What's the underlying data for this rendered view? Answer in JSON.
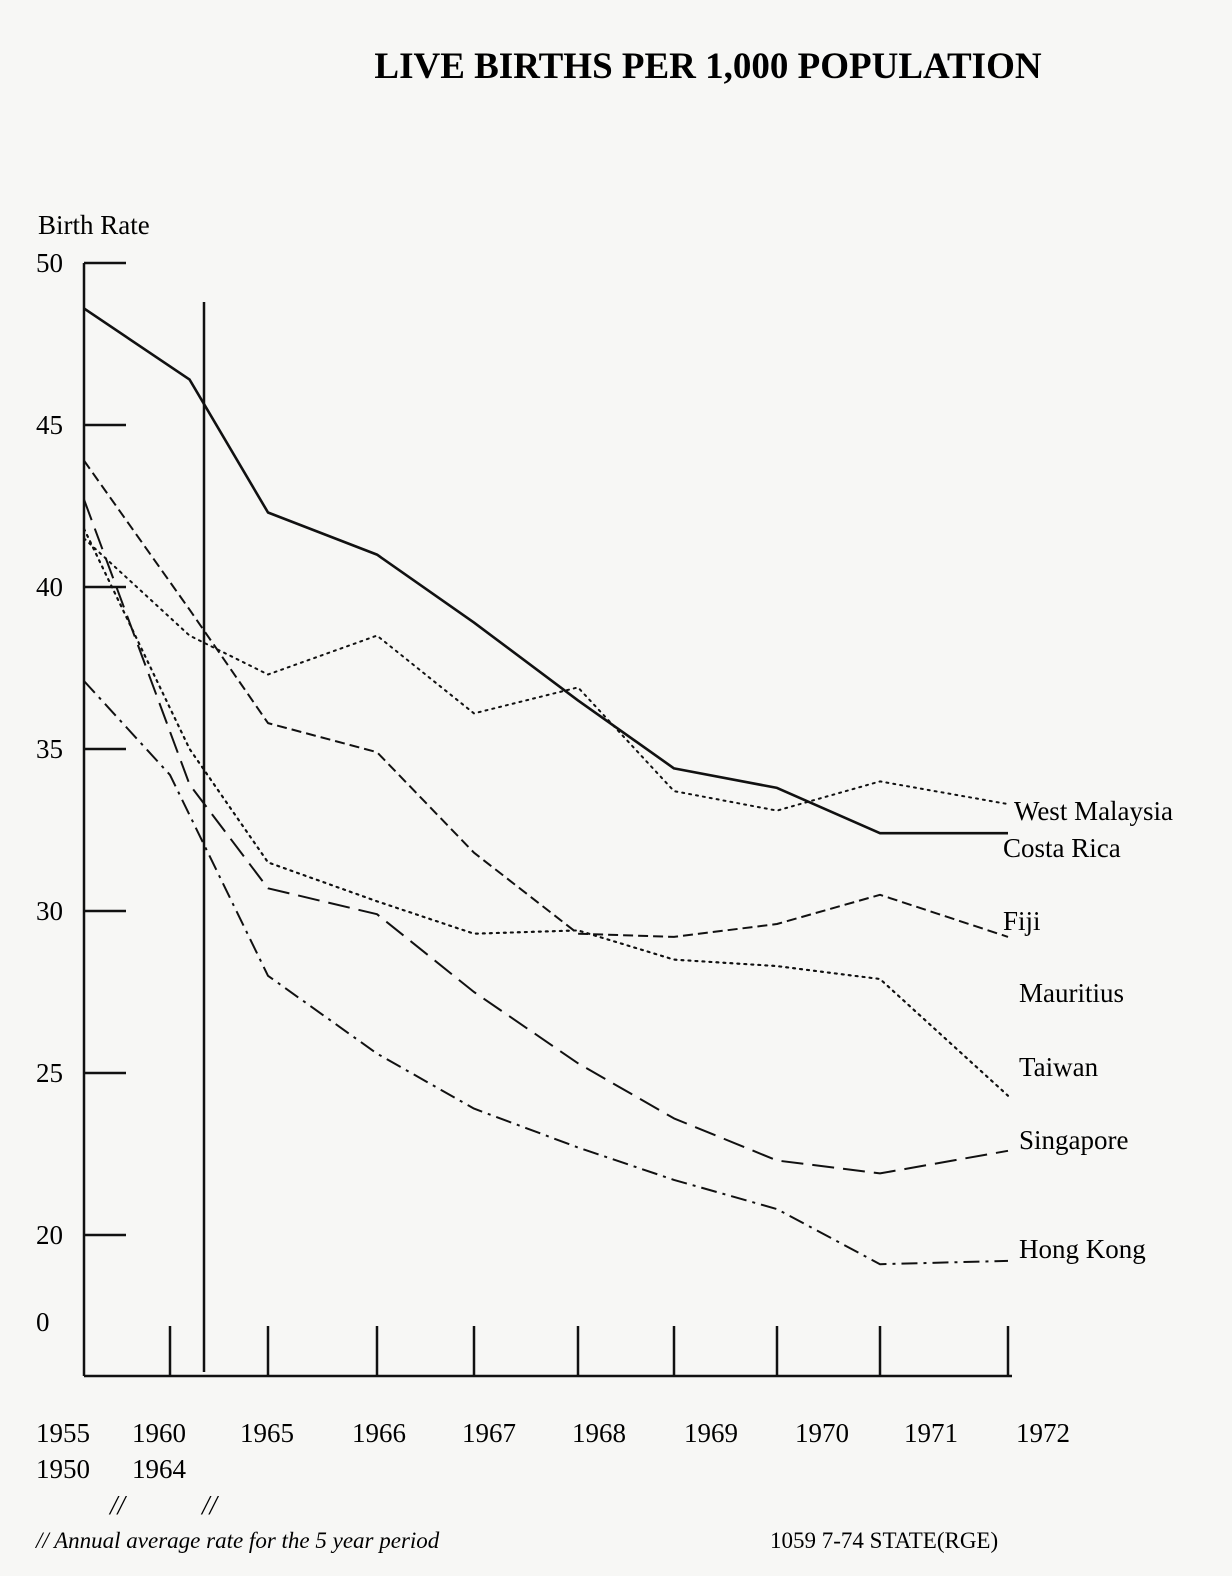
{
  "chart_data": {
    "type": "line",
    "title": "LIVE BIRTHS PER 1,000 POPULATION",
    "ylabel": "Birth Rate",
    "xlabel": "",
    "ylim": [
      0,
      50
    ],
    "y_ticks": [
      "50",
      "45",
      "40",
      "35",
      "30",
      "25",
      "20",
      "0"
    ],
    "y_tick_values": [
      50,
      45,
      40,
      35,
      30,
      25,
      20,
      0
    ],
    "y_axis_break": "0 shown below 20 (axis compressed)",
    "categories": [
      "1955 1950",
      "1960 1964",
      "1965",
      "1966",
      "1967",
      "1968",
      "1969",
      "1970",
      "1971",
      "1972"
    ],
    "x_tick_labels_top": [
      "1955",
      "1960",
      "1965",
      "1966",
      "1967",
      "1968",
      "1969",
      "1970",
      "1971",
      "1972"
    ],
    "x_tick_labels_bottom": [
      "1950",
      "1964"
    ],
    "period_markers": [
      "//",
      "//"
    ],
    "grid": false,
    "legend": "labels at right end of each line",
    "series": [
      {
        "name": "West Malaysia",
        "style": "dotted",
        "x": [
          0,
          1.2,
          2,
          3,
          4,
          5,
          6,
          7,
          8,
          9
        ],
        "values": [
          41.5,
          38.5,
          37.3,
          38.5,
          36.1,
          36.9,
          33.7,
          33.1,
          34.0,
          33.3
        ]
      },
      {
        "name": "Costa Rica",
        "style": "solid",
        "x": [
          0,
          1.2,
          2,
          3,
          4,
          5,
          6,
          7,
          8,
          9
        ],
        "values": [
          48.6,
          46.4,
          42.3,
          41.0,
          38.9,
          36.5,
          34.4,
          33.8,
          32.4,
          32.4
        ]
      },
      {
        "name": "Fiji",
        "style": "dashed",
        "x": [
          0,
          1.2,
          2,
          3,
          4,
          5,
          6,
          7,
          8,
          9
        ],
        "values": [
          43.9,
          39.3,
          35.8,
          34.9,
          31.8,
          29.3,
          29.2,
          29.6,
          30.5,
          29.2
        ]
      },
      {
        "name": "Mauritius",
        "style": "dotted",
        "x": [
          0,
          1.2,
          2,
          3,
          4,
          5,
          6,
          7,
          8,
          9
        ],
        "values": [
          41.8,
          35.0,
          31.5,
          30.3,
          29.3,
          29.4,
          28.5,
          28.3,
          27.9,
          24.3
        ]
      },
      {
        "name": "Taiwan",
        "style": "dotted",
        "x": [
          0,
          1.2,
          2,
          3,
          4,
          5,
          6,
          7,
          8,
          9
        ],
        "values": [
          41.8,
          35.0,
          31.5,
          30.3,
          29.3,
          29.4,
          28.5,
          28.3,
          27.9,
          24.3
        ]
      },
      {
        "name": "Singapore",
        "style": "long-dash",
        "x": [
          0,
          1.2,
          2,
          3,
          4,
          5,
          6,
          7,
          8,
          9
        ],
        "values": [
          42.7,
          33.9,
          30.7,
          29.9,
          27.5,
          25.3,
          23.6,
          22.3,
          21.9,
          22.6
        ]
      },
      {
        "name": "Hong Kong",
        "style": "dash-dot",
        "x": [
          0,
          1,
          2,
          3,
          4,
          5,
          6,
          7,
          8,
          9
        ],
        "values": [
          37.1,
          34.2,
          28.0,
          25.6,
          23.9,
          22.7,
          21.7,
          20.8,
          19.1,
          19.2
        ]
      }
    ]
  },
  "footnote": {
    "text": "// Annual average rate for the 5 year period",
    "source": "1059 7-74 STATE(RGE)"
  }
}
